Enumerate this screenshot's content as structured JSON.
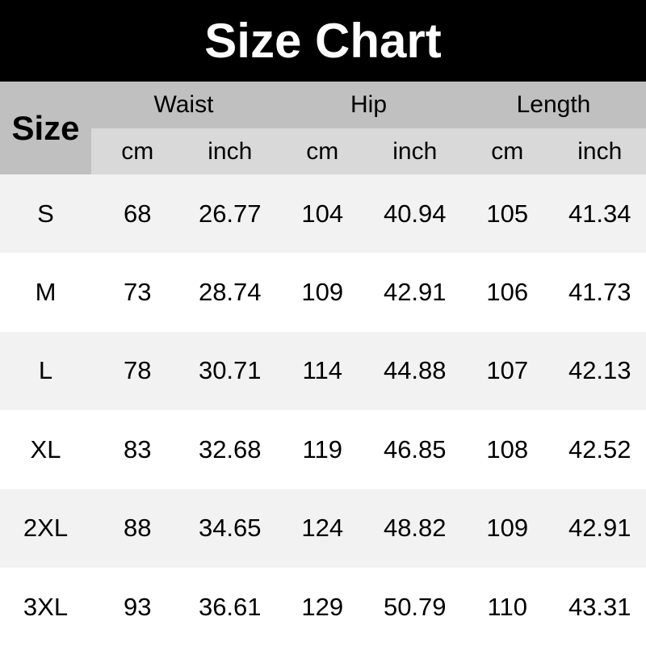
{
  "title": "Size Chart",
  "header": {
    "size_label": "Size",
    "groups": [
      "Waist",
      "Hip",
      "Length"
    ],
    "units": [
      "cm",
      "inch",
      "cm",
      "inch",
      "cm",
      "inch"
    ]
  },
  "colors": {
    "title_bg": "#000000",
    "header_bg": "#c0c0c0",
    "subheader_bg": "#d9d9d9",
    "row_alt_bg": "#f2f2f2"
  },
  "chart_data": {
    "type": "table",
    "title": "Size Chart",
    "columns": [
      "Size",
      "Waist cm",
      "Waist inch",
      "Hip cm",
      "Hip inch",
      "Length cm",
      "Length inch"
    ],
    "rows": [
      [
        "S",
        "68",
        "26.77",
        "104",
        "40.94",
        "105",
        "41.34"
      ],
      [
        "M",
        "73",
        "28.74",
        "109",
        "42.91",
        "106",
        "41.73"
      ],
      [
        "L",
        "78",
        "30.71",
        "114",
        "44.88",
        "107",
        "42.13"
      ],
      [
        "XL",
        "83",
        "32.68",
        "119",
        "46.85",
        "108",
        "42.52"
      ],
      [
        "2XL",
        "88",
        "34.65",
        "124",
        "48.82",
        "109",
        "42.91"
      ],
      [
        "3XL",
        "93",
        "36.61",
        "129",
        "50.79",
        "110",
        "43.31"
      ]
    ]
  }
}
